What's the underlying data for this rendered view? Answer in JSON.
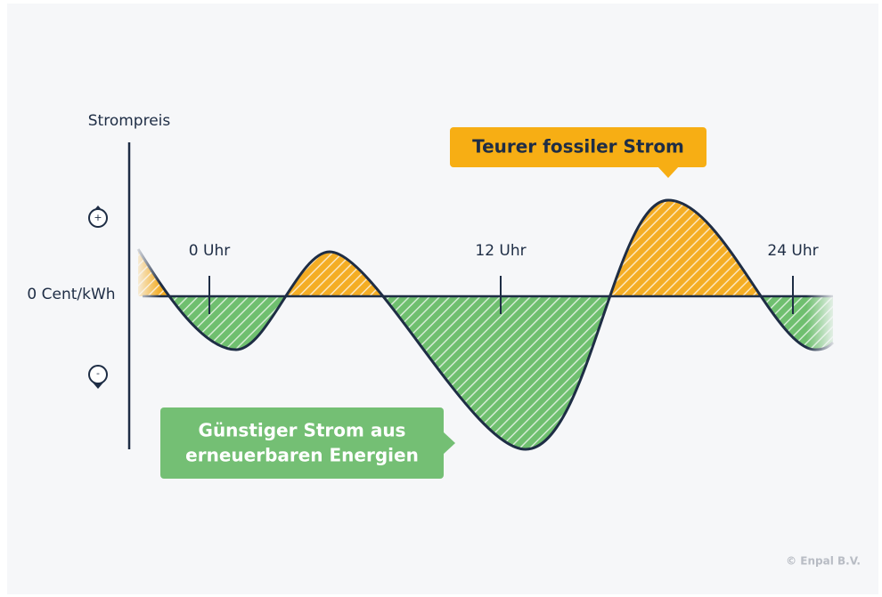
{
  "axis_label": "Strompreis",
  "zero_label": "0 Cent/kWh",
  "plus_icon": "+",
  "minus_icon": "-",
  "time_labels": [
    "0 Uhr",
    "12 Uhr",
    "24 Uhr"
  ],
  "callout_expensive": "Teurer fossiler Strom",
  "callout_cheap": [
    "Günstiger Strom aus",
    "erneuerbaren Energien"
  ],
  "copyright": "© Enpal B.V."
}
